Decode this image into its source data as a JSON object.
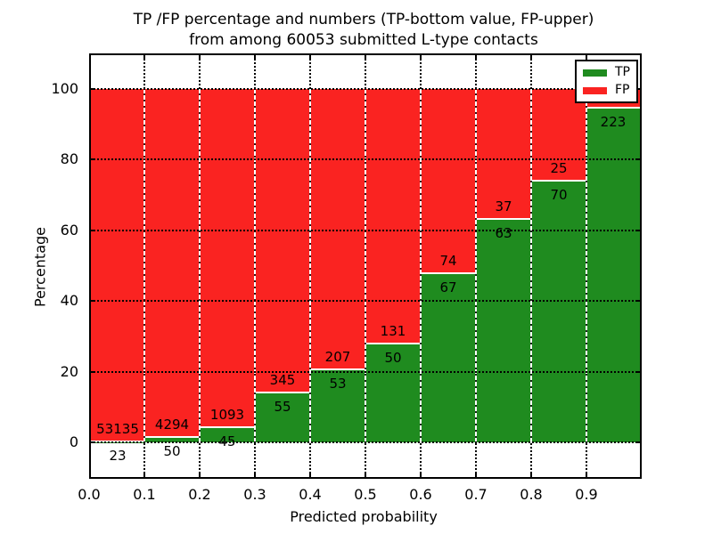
{
  "figure": {
    "title_line1": "TP /FP percentage and numbers (TP-bottom value, FP-upper)",
    "title_line2": "from among 60053 submitted L-type contacts",
    "background": "#ffffff"
  },
  "chart_data": {
    "type": "bar",
    "stacked": true,
    "normalized_to_percent": true,
    "title": "TP /FP percentage and numbers (TP-bottom value, FP-upper) from among 60053 submitted L-type contacts",
    "xlabel": "Predicted probability",
    "ylabel": "Percentage",
    "total_submitted": 60053,
    "x_tick_labels": [
      "0.0",
      "0.1",
      "0.2",
      "0.3",
      "0.4",
      "0.5",
      "0.6",
      "0.7",
      "0.8",
      "0.9"
    ],
    "y_ticks": [
      0,
      20,
      40,
      60,
      80,
      100
    ],
    "xlim": [
      0.0,
      1.0
    ],
    "ylim_display": [
      -10.4,
      110.5
    ],
    "grid": "dotted-black",
    "legend": {
      "position": "upper right",
      "entries": [
        {
          "label": "TP",
          "color": "#1f8b1f"
        },
        {
          "label": "FP",
          "color": "#fa2321"
        }
      ]
    },
    "bins": [
      {
        "range": [
          0.0,
          0.1
        ],
        "tp_count": 23,
        "fp_count": 53135,
        "tp_pct": 0.04,
        "tp_label": "23",
        "fp_label": "53135"
      },
      {
        "range": [
          0.1,
          0.2
        ],
        "tp_count": 50,
        "fp_count": 4294,
        "tp_pct": 1.15,
        "tp_label": "50",
        "fp_label": "4294"
      },
      {
        "range": [
          0.2,
          0.3
        ],
        "tp_count": 45,
        "fp_count": 1093,
        "tp_pct": 3.95,
        "tp_label": "45",
        "fp_label": "1093"
      },
      {
        "range": [
          0.3,
          0.4
        ],
        "tp_count": 55,
        "fp_count": 345,
        "tp_pct": 13.75,
        "tp_label": "55",
        "fp_label": "345"
      },
      {
        "range": [
          0.4,
          0.5
        ],
        "tp_count": 53,
        "fp_count": 207,
        "tp_pct": 20.38,
        "tp_label": "53",
        "fp_label": "207"
      },
      {
        "range": [
          0.5,
          0.6
        ],
        "tp_count": 50,
        "fp_count": 131,
        "tp_pct": 27.62,
        "tp_label": "50",
        "fp_label": "131"
      },
      {
        "range": [
          0.6,
          0.7
        ],
        "tp_count": 67,
        "fp_count": 74,
        "tp_pct": 47.52,
        "tp_label": "67",
        "fp_label": "74"
      },
      {
        "range": [
          0.7,
          0.8
        ],
        "tp_count": 63,
        "fp_count": 37,
        "tp_pct": 63.0,
        "tp_label": "63",
        "fp_label": "37"
      },
      {
        "range": [
          0.8,
          0.9
        ],
        "tp_count": 70,
        "fp_count": 25,
        "tp_pct": 73.68,
        "tp_label": "70",
        "fp_label": "25"
      },
      {
        "range": [
          0.9,
          1.0
        ],
        "tp_count": 223,
        "fp_count": null,
        "tp_pct": 94.5,
        "tp_label": "223",
        "fp_label": ""
      }
    ]
  },
  "colors": {
    "tp_green": "#1f8b1f",
    "fp_red": "#fa2321",
    "grid": "#000000",
    "spine": "#000000",
    "text": "#000000"
  }
}
